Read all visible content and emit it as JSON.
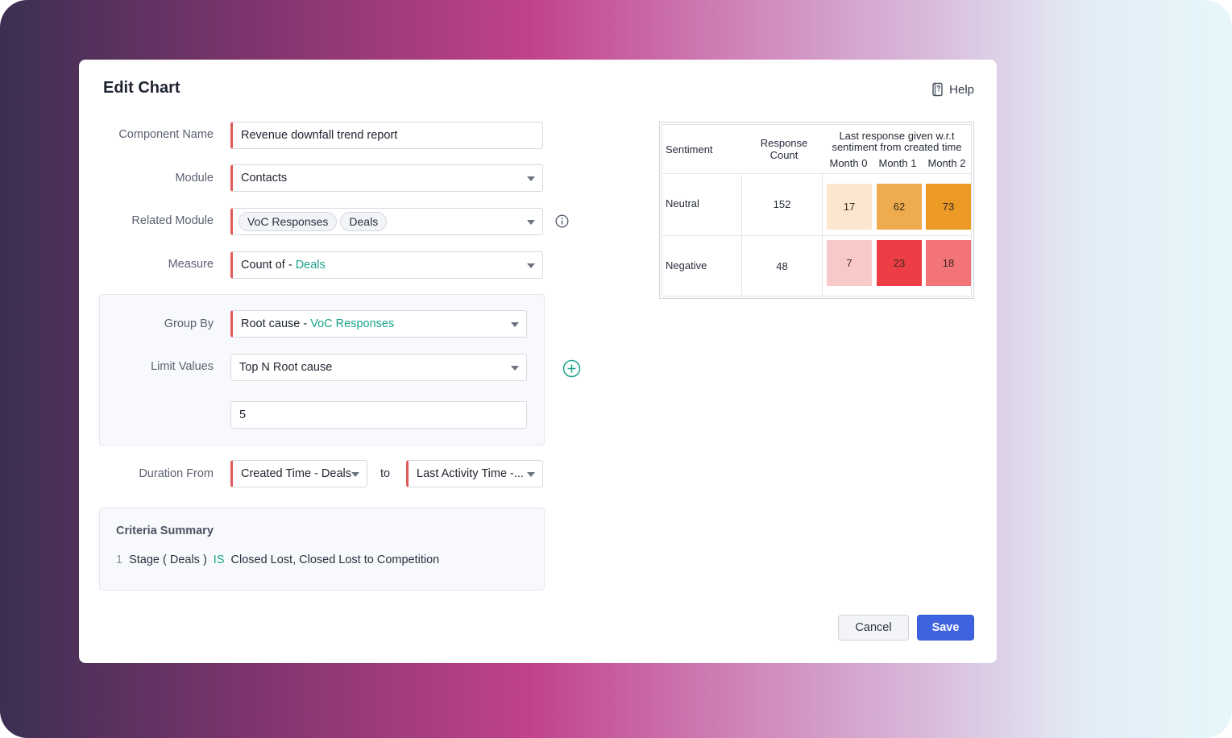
{
  "dialog": {
    "title": "Edit Chart",
    "help_label": "Help"
  },
  "form": {
    "component_name": {
      "label": "Component Name",
      "value": "Revenue downfall trend report"
    },
    "module": {
      "label": "Module",
      "value": "Contacts"
    },
    "related_module": {
      "label": "Related Module",
      "chips": [
        "VoC Responses",
        "Deals"
      ]
    },
    "measure": {
      "label": "Measure",
      "prefix": "Count of - ",
      "value": "Deals"
    },
    "group_by": {
      "label": "Group By",
      "prefix": "Root cause - ",
      "value": "VoC Responses"
    },
    "limit_values": {
      "label": "Limit Values",
      "value": "Top N Root cause",
      "count": "5"
    },
    "duration": {
      "label": "Duration From",
      "from": "Created Time - Deals",
      "to_label": "to",
      "to": "Last Activity Time -..."
    }
  },
  "criteria": {
    "title": "Criteria Summary",
    "rows": [
      {
        "num": "1",
        "field": "Stage ( Deals )",
        "op": "IS",
        "value": "Closed Lost, Closed Lost to Competition"
      }
    ]
  },
  "buttons": {
    "cancel": "Cancel",
    "save": "Save"
  },
  "chart_data": {
    "type": "heatmap",
    "headers": {
      "sentiment": "Sentiment",
      "count_line1": "Response",
      "count_line2": "Count",
      "group_line1": "Last response given w.r.t",
      "group_line2": "sentiment from created time"
    },
    "columns": [
      "Month 0",
      "Month 1",
      "Month 2"
    ],
    "rows": [
      {
        "label": "Neutral",
        "count": "152",
        "values": [
          17,
          62,
          73
        ],
        "colors": [
          "#fbe6d0",
          "#efac4e",
          "#ea9a25"
        ]
      },
      {
        "label": "Negative",
        "count": "48",
        "values": [
          7,
          23,
          18
        ],
        "colors": [
          "#f9c9c9",
          "#ee3e45",
          "#f27378"
        ]
      }
    ]
  }
}
